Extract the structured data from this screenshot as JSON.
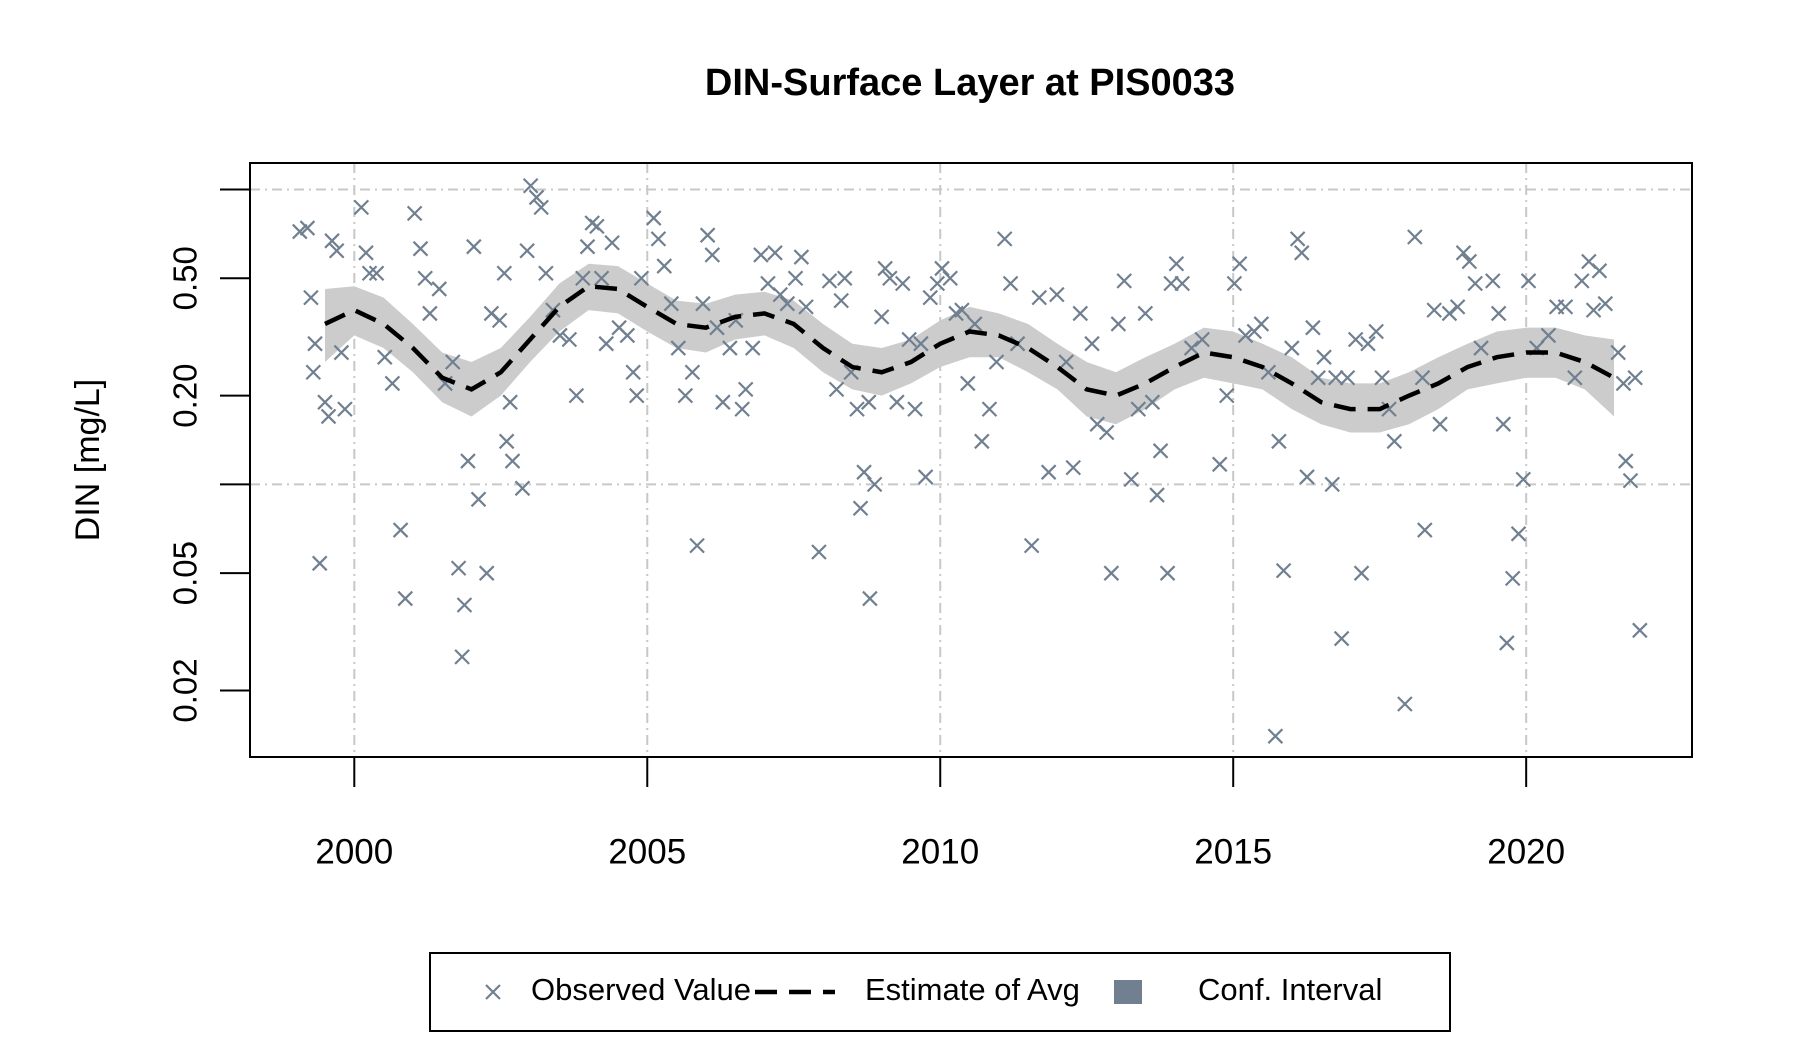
{
  "chart_data": {
    "type": "scatter",
    "title": "DIN-Surface Layer at PIS0033",
    "y_label": "DIN [mg/L]",
    "log_y": true,
    "grid": true,
    "legend_position": "bottom",
    "xlim": [
      1998.22,
      2022.83
    ],
    "xticks": [
      2000,
      2005,
      2010,
      2015,
      2020
    ],
    "ylim": [
      0.0119,
      1.23
    ],
    "yticks": [
      0.02,
      0.05,
      {
        "value": 0.2,
        "label": "0.20"
      },
      {
        "value": 0.5,
        "label": "0.50"
      }
    ],
    "ygrid": [
      0.1,
      1
    ],
    "series": [
      {
        "name": "Observed Value",
        "style": "cross",
        "color": "#708090",
        "x": [
          1999.07,
          1999.2,
          1999.26,
          1999.3,
          1999.33,
          1999.41,
          1999.5,
          1999.56,
          1999.62,
          1999.7,
          1999.78,
          1999.84,
          2000.12,
          2000.2,
          2000.26,
          2000.38,
          2000.52,
          2000.65,
          2000.79,
          2000.87,
          2001.03,
          2001.13,
          2001.21,
          2001.29,
          2001.45,
          2001.55,
          2001.68,
          2001.78,
          2001.84,
          2001.88,
          2001.94,
          2002.04,
          2002.12,
          2002.26,
          2002.34,
          2002.48,
          2002.56,
          2002.6,
          2002.66,
          2002.7,
          2002.87,
          2002.95,
          2003.01,
          2003.11,
          2003.19,
          2003.27,
          2003.39,
          2003.51,
          2003.67,
          2003.79,
          2003.9,
          2003.98,
          2004.06,
          2004.14,
          2004.22,
          2004.3,
          2004.4,
          2004.52,
          2004.66,
          2004.76,
          2004.82,
          2004.9,
          2005.11,
          2005.19,
          2005.29,
          2005.41,
          2005.53,
          2005.65,
          2005.77,
          2005.85,
          2005.95,
          2006.03,
          2006.11,
          2006.19,
          2006.29,
          2006.41,
          2006.51,
          2006.62,
          2006.68,
          2006.8,
          2006.94,
          2007.06,
          2007.18,
          2007.27,
          2007.39,
          2007.53,
          2007.63,
          2007.71,
          2007.93,
          2008.11,
          2008.23,
          2008.31,
          2008.37,
          2008.48,
          2008.58,
          2008.64,
          2008.7,
          2008.78,
          2008.8,
          2008.88,
          2009.0,
          2009.06,
          2009.14,
          2009.26,
          2009.36,
          2009.47,
          2009.57,
          2009.67,
          2009.75,
          2009.83,
          2009.95,
          2010.03,
          2010.17,
          2010.27,
          2010.37,
          2010.47,
          2010.59,
          2010.71,
          2010.84,
          2010.96,
          2011.1,
          2011.2,
          2011.32,
          2011.56,
          2011.69,
          2011.85,
          2011.99,
          2012.15,
          2012.27,
          2012.39,
          2012.59,
          2012.68,
          2012.84,
          2012.92,
          2013.04,
          2013.14,
          2013.26,
          2013.38,
          2013.5,
          2013.62,
          2013.7,
          2013.76,
          2013.88,
          2013.94,
          2014.03,
          2014.13,
          2014.29,
          2014.47,
          2014.77,
          2014.89,
          2015.02,
          2015.11,
          2015.21,
          2015.36,
          2015.48,
          2015.6,
          2015.72,
          2015.78,
          2015.86,
          2016.0,
          2016.1,
          2016.17,
          2016.26,
          2016.36,
          2016.45,
          2016.55,
          2016.69,
          2016.75,
          2016.85,
          2016.95,
          2017.09,
          2017.19,
          2017.3,
          2017.44,
          2017.54,
          2017.66,
          2017.75,
          2017.93,
          2018.1,
          2018.23,
          2018.27,
          2018.43,
          2018.53,
          2018.69,
          2018.83,
          2018.93,
          2019.03,
          2019.13,
          2019.23,
          2019.43,
          2019.53,
          2019.61,
          2019.67,
          2019.77,
          2019.87,
          2019.95,
          2020.04,
          2020.18,
          2020.38,
          2020.52,
          2020.67,
          2020.83,
          2020.95,
          2021.07,
          2021.15,
          2021.25,
          2021.35,
          2021.57,
          2021.66,
          2021.7,
          2021.78,
          2021.86,
          2021.94
        ],
        "values": [
          0.72,
          0.74,
          0.43,
          0.24,
          0.3,
          0.054,
          0.19,
          0.17,
          0.67,
          0.62,
          0.28,
          0.18,
          0.87,
          0.61,
          0.52,
          0.52,
          0.27,
          0.22,
          0.07,
          0.041,
          0.83,
          0.63,
          0.5,
          0.38,
          0.46,
          0.22,
          0.26,
          0.052,
          0.026,
          0.039,
          0.12,
          0.64,
          0.089,
          0.05,
          0.38,
          0.36,
          0.52,
          0.14,
          0.19,
          0.12,
          0.097,
          0.62,
          1.03,
          0.94,
          0.87,
          0.52,
          0.39,
          0.32,
          0.31,
          0.2,
          0.5,
          0.64,
          0.77,
          0.75,
          0.5,
          0.3,
          0.66,
          0.34,
          0.32,
          0.24,
          0.2,
          0.5,
          0.8,
          0.68,
          0.55,
          0.41,
          0.29,
          0.2,
          0.24,
          0.062,
          0.41,
          0.7,
          0.6,
          0.34,
          0.19,
          0.29,
          0.36,
          0.18,
          0.21,
          0.29,
          0.6,
          0.48,
          0.61,
          0.44,
          0.41,
          0.5,
          0.59,
          0.4,
          0.059,
          0.49,
          0.21,
          0.42,
          0.5,
          0.24,
          0.18,
          0.083,
          0.11,
          0.19,
          0.041,
          0.1,
          0.37,
          0.54,
          0.5,
          0.19,
          0.48,
          0.31,
          0.18,
          0.3,
          0.106,
          0.43,
          0.48,
          0.54,
          0.5,
          0.38,
          0.39,
          0.22,
          0.35,
          0.14,
          0.18,
          0.26,
          0.68,
          0.48,
          0.3,
          0.062,
          0.43,
          0.11,
          0.44,
          0.26,
          0.114,
          0.38,
          0.3,
          0.16,
          0.15,
          0.05,
          0.35,
          0.49,
          0.104,
          0.18,
          0.38,
          0.19,
          0.092,
          0.13,
          0.05,
          0.48,
          0.56,
          0.48,
          0.29,
          0.31,
          0.117,
          0.2,
          0.48,
          0.56,
          0.32,
          0.33,
          0.35,
          0.24,
          0.014,
          0.14,
          0.051,
          0.29,
          0.68,
          0.61,
          0.106,
          0.34,
          0.23,
          0.27,
          0.1,
          0.23,
          0.03,
          0.23,
          0.31,
          0.05,
          0.3,
          0.33,
          0.23,
          0.18,
          0.14,
          0.018,
          0.69,
          0.23,
          0.07,
          0.39,
          0.16,
          0.38,
          0.4,
          0.61,
          0.57,
          0.48,
          0.29,
          0.49,
          0.38,
          0.16,
          0.029,
          0.048,
          0.068,
          0.104,
          0.49,
          0.29,
          0.32,
          0.4,
          0.4,
          0.23,
          0.49,
          0.57,
          0.39,
          0.53,
          0.41,
          0.28,
          0.22,
          0.12,
          0.103,
          0.23,
          0.032
        ]
      },
      {
        "name": "Estimate of Avg",
        "style": "dashed-line",
        "color": "#000000",
        "x": [
          1999.5,
          2000,
          2000.5,
          2001,
          2001.5,
          2002,
          2002.5,
          2003,
          2003.5,
          2004,
          2004.5,
          2005,
          2005.5,
          2006,
          2006.5,
          2007,
          2007.5,
          2008,
          2008.5,
          2009,
          2009.5,
          2010,
          2010.5,
          2011,
          2011.5,
          2012,
          2012.5,
          2013,
          2013.5,
          2014,
          2014.5,
          2015,
          2015.5,
          2016,
          2016.5,
          2017,
          2017.5,
          2018,
          2018.5,
          2019,
          2019.5,
          2020,
          2020.5,
          2021,
          2021.5
        ],
        "values": [
          0.35,
          0.39,
          0.35,
          0.29,
          0.23,
          0.21,
          0.24,
          0.31,
          0.4,
          0.47,
          0.46,
          0.4,
          0.35,
          0.34,
          0.37,
          0.38,
          0.35,
          0.29,
          0.25,
          0.24,
          0.26,
          0.3,
          0.33,
          0.32,
          0.29,
          0.25,
          0.21,
          0.2,
          0.22,
          0.25,
          0.28,
          0.27,
          0.25,
          0.22,
          0.19,
          0.18,
          0.18,
          0.2,
          0.22,
          0.25,
          0.27,
          0.28,
          0.28,
          0.26,
          0.23
        ]
      },
      {
        "name": "Conf. Interval",
        "style": "band",
        "color": "#cccccc",
        "legend_color": "#708090",
        "x": [
          1999.5,
          2000,
          2000.5,
          2001,
          2001.5,
          2002,
          2002.5,
          2003,
          2003.5,
          2004,
          2004.5,
          2005,
          2005.5,
          2006,
          2006.5,
          2007,
          2007.5,
          2008,
          2008.5,
          2009,
          2009.5,
          2010,
          2010.5,
          2011,
          2011.5,
          2012,
          2012.5,
          2013,
          2013.5,
          2014,
          2014.5,
          2015,
          2015.5,
          2016,
          2016.5,
          2017,
          2017.5,
          2018,
          2018.5,
          2019,
          2019.5,
          2020,
          2020.5,
          2021,
          2021.5
        ],
        "lower": [
          0.26,
          0.32,
          0.29,
          0.24,
          0.19,
          0.17,
          0.2,
          0.26,
          0.33,
          0.39,
          0.38,
          0.33,
          0.29,
          0.28,
          0.31,
          0.32,
          0.29,
          0.24,
          0.21,
          0.2,
          0.22,
          0.25,
          0.27,
          0.27,
          0.24,
          0.21,
          0.17,
          0.16,
          0.18,
          0.21,
          0.23,
          0.22,
          0.21,
          0.18,
          0.16,
          0.15,
          0.15,
          0.16,
          0.18,
          0.21,
          0.22,
          0.23,
          0.23,
          0.21,
          0.17
        ],
        "upper": [
          0.46,
          0.47,
          0.43,
          0.35,
          0.28,
          0.26,
          0.29,
          0.37,
          0.48,
          0.56,
          0.55,
          0.48,
          0.42,
          0.41,
          0.44,
          0.45,
          0.42,
          0.35,
          0.3,
          0.29,
          0.31,
          0.36,
          0.4,
          0.38,
          0.35,
          0.3,
          0.26,
          0.24,
          0.27,
          0.3,
          0.34,
          0.33,
          0.3,
          0.27,
          0.23,
          0.22,
          0.22,
          0.24,
          0.27,
          0.3,
          0.33,
          0.34,
          0.34,
          0.32,
          0.31
        ]
      }
    ]
  }
}
